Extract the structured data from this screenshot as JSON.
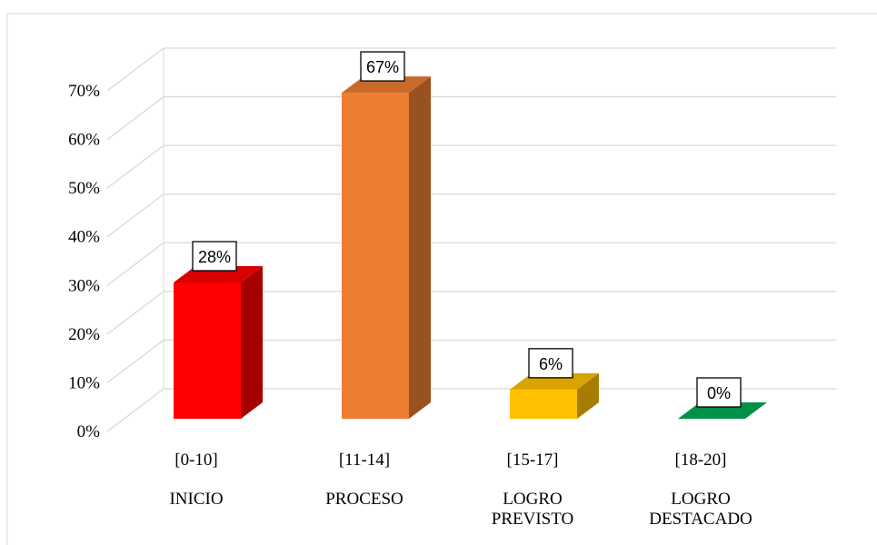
{
  "chart_data": {
    "type": "bar3d",
    "categories": [
      "[0-10]",
      "[11-14]",
      "[15-17]",
      "[18-20]"
    ],
    "sublabels": [
      "INICIO",
      "PROCESO",
      "LOGRO PREVISTO",
      "LOGRO DESTACADO"
    ],
    "values": [
      28,
      67,
      6,
      0
    ],
    "value_labels": [
      "28%",
      "67%",
      "6%",
      "0%"
    ],
    "colors": [
      "#ff0000",
      "#ed7d31",
      "#ffc000",
      "#00a050"
    ],
    "ylim": [
      0,
      70
    ],
    "yticks": [
      {
        "value": 0,
        "label": "0%"
      },
      {
        "value": 10,
        "label": "10%"
      },
      {
        "value": 20,
        "label": "20%"
      },
      {
        "value": 30,
        "label": "30%"
      },
      {
        "value": 40,
        "label": "40%"
      },
      {
        "value": 50,
        "label": "50%"
      },
      {
        "value": 60,
        "label": "60%"
      },
      {
        "value": 70,
        "label": "70%"
      }
    ],
    "grid": true
  }
}
